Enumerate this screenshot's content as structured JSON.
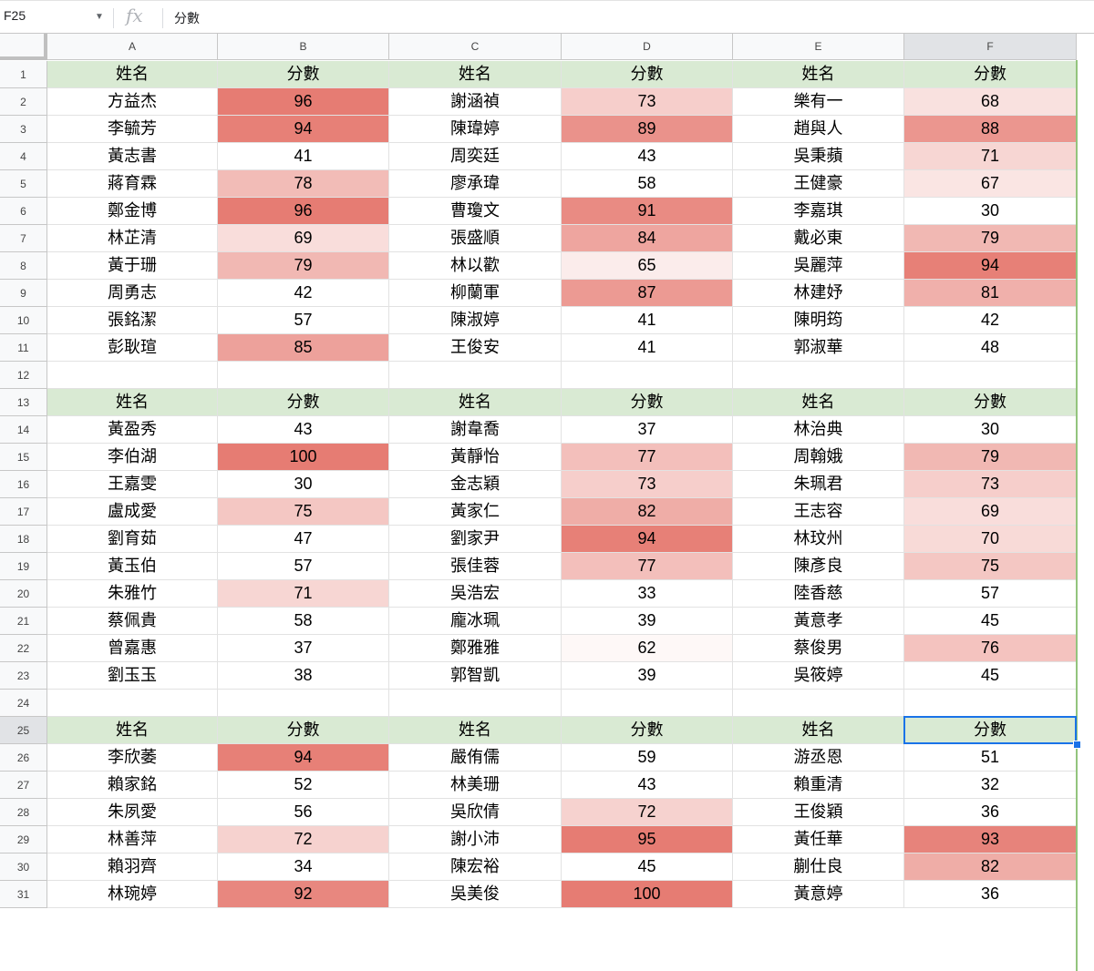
{
  "formula_bar": {
    "name_box": "F25",
    "fx_label": "fx",
    "value": "分數"
  },
  "columns": [
    "A",
    "B",
    "C",
    "D",
    "E",
    "F"
  ],
  "selected_cell": {
    "column": "F",
    "row": 25
  },
  "color_scale": {
    "min_color": "#ffffff",
    "max_color": "#e67c73",
    "min_value": 60,
    "max_value": 95
  },
  "header_fill": "#d9ead3",
  "rows": [
    [
      "姓名",
      "分數",
      "姓名",
      "分數",
      "姓名",
      "分數"
    ],
    [
      "方益杰",
      "96",
      "謝涵禎",
      "73",
      "樂有一",
      "68"
    ],
    [
      "李毓芳",
      "94",
      "陳瑋婷",
      "89",
      "趙與人",
      "88"
    ],
    [
      "黃志書",
      "41",
      "周奕廷",
      "43",
      "吳秉蘋",
      "71"
    ],
    [
      "蔣育霖",
      "78",
      "廖承瑋",
      "58",
      "王健豪",
      "67"
    ],
    [
      "鄭金博",
      "96",
      "曹瓊文",
      "91",
      "李嘉琪",
      "30"
    ],
    [
      "林芷清",
      "69",
      "張盛順",
      "84",
      "戴必東",
      "79"
    ],
    [
      "黃于珊",
      "79",
      "林以歡",
      "65",
      "吳麗萍",
      "94"
    ],
    [
      "周勇志",
      "42",
      "柳蘭軍",
      "87",
      "林建妤",
      "81"
    ],
    [
      "張銘潔",
      "57",
      "陳淑婷",
      "41",
      "陳明筠",
      "42"
    ],
    [
      "彭耿瑄",
      "85",
      "王俊安",
      "41",
      "郭淑華",
      "48"
    ],
    [
      "",
      "",
      "",
      "",
      "",
      ""
    ],
    [
      "姓名",
      "分數",
      "姓名",
      "分數",
      "姓名",
      "分數"
    ],
    [
      "黃盈秀",
      "43",
      "謝韋喬",
      "37",
      "林治典",
      "30"
    ],
    [
      "李伯湖",
      "100",
      "黃靜怡",
      "77",
      "周翰娥",
      "79"
    ],
    [
      "王嘉雯",
      "30",
      "金志穎",
      "73",
      "朱珮君",
      "73"
    ],
    [
      "盧成愛",
      "75",
      "黃家仁",
      "82",
      "王志容",
      "69"
    ],
    [
      "劉育茹",
      "47",
      "劉家尹",
      "94",
      "林玟州",
      "70"
    ],
    [
      "黃玉伯",
      "57",
      "張佳蓉",
      "77",
      "陳彥良",
      "75"
    ],
    [
      "朱雅竹",
      "71",
      "吳浩宏",
      "33",
      "陸香慈",
      "57"
    ],
    [
      "蔡佩貴",
      "58",
      "龐冰珮",
      "39",
      "黃意孝",
      "45"
    ],
    [
      "曾嘉惠",
      "37",
      "鄭雅雅",
      "62",
      "蔡俊男",
      "76"
    ],
    [
      "劉玉玉",
      "38",
      "郭智凱",
      "39",
      "吳筱婷",
      "45"
    ],
    [
      "",
      "",
      "",
      "",
      "",
      ""
    ],
    [
      "姓名",
      "分數",
      "姓名",
      "分數",
      "姓名",
      "分數"
    ],
    [
      "李欣萎",
      "94",
      "嚴侑儒",
      "59",
      "游丞恩",
      "51"
    ],
    [
      "賴家銘",
      "52",
      "林美珊",
      "43",
      "賴重清",
      "32"
    ],
    [
      "朱夙愛",
      "56",
      "吳欣倩",
      "72",
      "王俊穎",
      "36"
    ],
    [
      "林善萍",
      "72",
      "謝小沛",
      "95",
      "黃任華",
      "93"
    ],
    [
      "賴羽齊",
      "34",
      "陳宏裕",
      "45",
      "蒯仕良",
      "82"
    ],
    [
      "林琬婷",
      "92",
      "吳美俊",
      "100",
      "黃意婷",
      "36"
    ]
  ]
}
